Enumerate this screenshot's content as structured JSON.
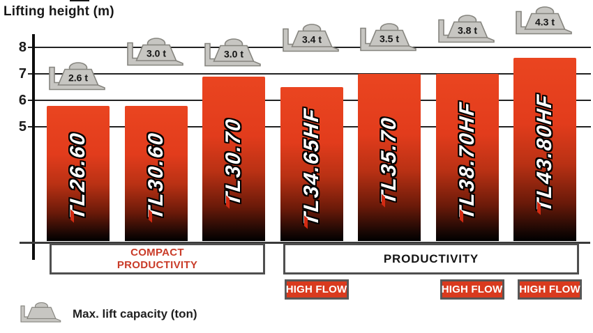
{
  "chart_data": {
    "type": "bar",
    "title": "Lifting height (m)",
    "ylabel": "Lifting height (m)",
    "xlabel": "",
    "yticks": [
      8,
      7,
      6,
      5
    ],
    "grid": true,
    "axis_truncated": true,
    "categories": [
      "TL26.60",
      "TL30.60",
      "TL30.70",
      "TL34.65HF",
      "TL35.70",
      "TL38.70HF",
      "TL43.80HF"
    ],
    "values": [
      5.8,
      5.8,
      6.9,
      6.5,
      7.0,
      7.0,
      7.6
    ],
    "capacities": [
      "2.6 t",
      "3.0 t",
      "3.0 t",
      "3.4 t",
      "3.5 t",
      "3.8 t",
      "4.3 t"
    ],
    "high_flow_indices": [
      3,
      5,
      6
    ],
    "high_flow_label": "HIGH FLOW",
    "groups": [
      {
        "label": "COMPACT\nPRODUCTIVITY",
        "start": 0,
        "end": 2,
        "text_color": "#c93b28"
      },
      {
        "label": "PRODUCTIVITY",
        "start": 3,
        "end": 6,
        "text_color": "#141414"
      }
    ],
    "legend_label": "Max. lift capacity (ton)",
    "legend_position": "bottom-left"
  },
  "colors": {
    "bar_gradient_top": "#e8421e",
    "bar_gradient_bottom": "#000000",
    "badge_red": "#d93a1e",
    "badge_border": "#575757",
    "compact_text_red": "#c93b28",
    "icon_gray": "#c7c6c2",
    "icon_stroke": "#85847e",
    "grid_color": "#222222"
  }
}
